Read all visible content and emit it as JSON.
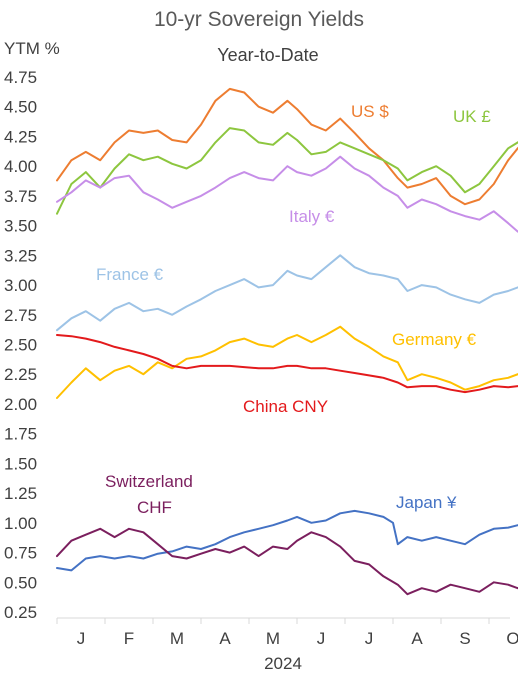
{
  "chart_data": {
    "type": "line",
    "title": "10-yr Sovereign Yields",
    "subtitle": "Year-to-Date",
    "ylabel": "YTM %",
    "xlabel": "2024",
    "ylim": [
      0.25,
      4.75
    ],
    "yticks": [
      "4.75",
      "4.50",
      "4.25",
      "4.00",
      "3.75",
      "3.50",
      "3.25",
      "3.00",
      "2.75",
      "2.50",
      "2.25",
      "2.00",
      "1.75",
      "1.50",
      "1.25",
      "1.00",
      "0.75",
      "0.50",
      "0.25"
    ],
    "months": [
      "J",
      "F",
      "M",
      "A",
      "M",
      "J",
      "J",
      "A",
      "S",
      "O"
    ],
    "grid": false,
    "series": [
      {
        "name": "US $",
        "color": "#ed7d31",
        "points": [
          [
            0.0,
            3.88
          ],
          [
            0.3,
            4.05
          ],
          [
            0.6,
            4.12
          ],
          [
            0.9,
            4.05
          ],
          [
            1.2,
            4.2
          ],
          [
            1.5,
            4.3
          ],
          [
            1.8,
            4.28
          ],
          [
            2.1,
            4.3
          ],
          [
            2.4,
            4.22
          ],
          [
            2.7,
            4.2
          ],
          [
            3.0,
            4.35
          ],
          [
            3.3,
            4.55
          ],
          [
            3.6,
            4.65
          ],
          [
            3.9,
            4.62
          ],
          [
            4.2,
            4.5
          ],
          [
            4.5,
            4.45
          ],
          [
            4.8,
            4.55
          ],
          [
            5.0,
            4.48
          ],
          [
            5.3,
            4.35
          ],
          [
            5.6,
            4.3
          ],
          [
            5.9,
            4.4
          ],
          [
            6.2,
            4.28
          ],
          [
            6.5,
            4.15
          ],
          [
            6.8,
            4.05
          ],
          [
            7.1,
            3.9
          ],
          [
            7.3,
            3.82
          ],
          [
            7.6,
            3.85
          ],
          [
            7.9,
            3.9
          ],
          [
            8.2,
            3.75
          ],
          [
            8.5,
            3.68
          ],
          [
            8.8,
            3.72
          ],
          [
            9.1,
            3.85
          ],
          [
            9.4,
            4.05
          ],
          [
            9.6,
            4.15
          ],
          [
            9.8,
            4.24
          ]
        ]
      },
      {
        "name": "UK £",
        "color": "#8dc63f",
        "points": [
          [
            0.0,
            3.6
          ],
          [
            0.3,
            3.85
          ],
          [
            0.6,
            3.95
          ],
          [
            0.9,
            3.82
          ],
          [
            1.2,
            3.98
          ],
          [
            1.5,
            4.1
          ],
          [
            1.8,
            4.05
          ],
          [
            2.1,
            4.08
          ],
          [
            2.4,
            4.02
          ],
          [
            2.7,
            3.98
          ],
          [
            3.0,
            4.05
          ],
          [
            3.3,
            4.2
          ],
          [
            3.6,
            4.32
          ],
          [
            3.9,
            4.3
          ],
          [
            4.2,
            4.2
          ],
          [
            4.5,
            4.18
          ],
          [
            4.8,
            4.28
          ],
          [
            5.0,
            4.22
          ],
          [
            5.3,
            4.1
          ],
          [
            5.6,
            4.12
          ],
          [
            5.9,
            4.2
          ],
          [
            6.2,
            4.15
          ],
          [
            6.5,
            4.1
          ],
          [
            6.8,
            4.05
          ],
          [
            7.1,
            3.98
          ],
          [
            7.3,
            3.88
          ],
          [
            7.6,
            3.95
          ],
          [
            7.9,
            4.0
          ],
          [
            8.2,
            3.92
          ],
          [
            8.5,
            3.78
          ],
          [
            8.8,
            3.85
          ],
          [
            9.1,
            4.0
          ],
          [
            9.4,
            4.15
          ],
          [
            9.6,
            4.2
          ],
          [
            9.8,
            4.25
          ]
        ]
      },
      {
        "name": "Italy €",
        "color": "#c68ee8",
        "points": [
          [
            0.0,
            3.7
          ],
          [
            0.3,
            3.78
          ],
          [
            0.6,
            3.88
          ],
          [
            0.9,
            3.82
          ],
          [
            1.2,
            3.9
          ],
          [
            1.5,
            3.92
          ],
          [
            1.8,
            3.78
          ],
          [
            2.1,
            3.72
          ],
          [
            2.4,
            3.65
          ],
          [
            2.7,
            3.7
          ],
          [
            3.0,
            3.75
          ],
          [
            3.3,
            3.82
          ],
          [
            3.6,
            3.9
          ],
          [
            3.9,
            3.95
          ],
          [
            4.2,
            3.9
          ],
          [
            4.5,
            3.88
          ],
          [
            4.8,
            4.0
          ],
          [
            5.0,
            3.95
          ],
          [
            5.3,
            3.92
          ],
          [
            5.6,
            3.98
          ],
          [
            5.9,
            4.08
          ],
          [
            6.2,
            3.98
          ],
          [
            6.5,
            3.92
          ],
          [
            6.8,
            3.82
          ],
          [
            7.1,
            3.75
          ],
          [
            7.3,
            3.65
          ],
          [
            7.6,
            3.72
          ],
          [
            7.9,
            3.68
          ],
          [
            8.2,
            3.62
          ],
          [
            8.5,
            3.58
          ],
          [
            8.8,
            3.55
          ],
          [
            9.1,
            3.62
          ],
          [
            9.4,
            3.52
          ],
          [
            9.6,
            3.45
          ],
          [
            9.8,
            3.5
          ]
        ]
      },
      {
        "name": "France €",
        "color": "#9dc3e6",
        "points": [
          [
            0.0,
            2.62
          ],
          [
            0.3,
            2.72
          ],
          [
            0.6,
            2.78
          ],
          [
            0.9,
            2.7
          ],
          [
            1.2,
            2.8
          ],
          [
            1.5,
            2.85
          ],
          [
            1.8,
            2.78
          ],
          [
            2.1,
            2.8
          ],
          [
            2.4,
            2.75
          ],
          [
            2.7,
            2.82
          ],
          [
            3.0,
            2.88
          ],
          [
            3.3,
            2.95
          ],
          [
            3.6,
            3.0
          ],
          [
            3.9,
            3.05
          ],
          [
            4.2,
            2.98
          ],
          [
            4.5,
            3.0
          ],
          [
            4.8,
            3.12
          ],
          [
            5.0,
            3.08
          ],
          [
            5.3,
            3.05
          ],
          [
            5.6,
            3.15
          ],
          [
            5.9,
            3.25
          ],
          [
            6.2,
            3.15
          ],
          [
            6.5,
            3.1
          ],
          [
            6.8,
            3.08
          ],
          [
            7.1,
            3.05
          ],
          [
            7.3,
            2.95
          ],
          [
            7.6,
            3.0
          ],
          [
            7.9,
            2.98
          ],
          [
            8.2,
            2.92
          ],
          [
            8.5,
            2.88
          ],
          [
            8.8,
            2.85
          ],
          [
            9.1,
            2.92
          ],
          [
            9.4,
            2.95
          ],
          [
            9.6,
            2.98
          ],
          [
            9.8,
            3.0
          ]
        ]
      },
      {
        "name": "Germany €",
        "color": "#ffc000",
        "points": [
          [
            0.0,
            2.05
          ],
          [
            0.3,
            2.18
          ],
          [
            0.6,
            2.3
          ],
          [
            0.9,
            2.2
          ],
          [
            1.2,
            2.28
          ],
          [
            1.5,
            2.32
          ],
          [
            1.8,
            2.25
          ],
          [
            2.1,
            2.35
          ],
          [
            2.4,
            2.3
          ],
          [
            2.7,
            2.38
          ],
          [
            3.0,
            2.4
          ],
          [
            3.3,
            2.45
          ],
          [
            3.6,
            2.52
          ],
          [
            3.9,
            2.55
          ],
          [
            4.2,
            2.5
          ],
          [
            4.5,
            2.48
          ],
          [
            4.8,
            2.55
          ],
          [
            5.0,
            2.58
          ],
          [
            5.3,
            2.52
          ],
          [
            5.6,
            2.58
          ],
          [
            5.9,
            2.65
          ],
          [
            6.2,
            2.55
          ],
          [
            6.5,
            2.48
          ],
          [
            6.8,
            2.4
          ],
          [
            7.1,
            2.35
          ],
          [
            7.3,
            2.2
          ],
          [
            7.6,
            2.25
          ],
          [
            7.9,
            2.22
          ],
          [
            8.2,
            2.18
          ],
          [
            8.5,
            2.12
          ],
          [
            8.8,
            2.15
          ],
          [
            9.1,
            2.2
          ],
          [
            9.4,
            2.22
          ],
          [
            9.6,
            2.25
          ],
          [
            9.8,
            2.28
          ]
        ]
      },
      {
        "name": "China CNY",
        "color": "#e31a1c",
        "points": [
          [
            0.0,
            2.58
          ],
          [
            0.3,
            2.57
          ],
          [
            0.6,
            2.55
          ],
          [
            0.9,
            2.52
          ],
          [
            1.2,
            2.48
          ],
          [
            1.5,
            2.45
          ],
          [
            1.8,
            2.42
          ],
          [
            2.1,
            2.38
          ],
          [
            2.4,
            2.32
          ],
          [
            2.7,
            2.3
          ],
          [
            3.0,
            2.32
          ],
          [
            3.3,
            2.32
          ],
          [
            3.6,
            2.32
          ],
          [
            3.9,
            2.31
          ],
          [
            4.2,
            2.3
          ],
          [
            4.5,
            2.3
          ],
          [
            4.8,
            2.32
          ],
          [
            5.0,
            2.32
          ],
          [
            5.3,
            2.3
          ],
          [
            5.6,
            2.3
          ],
          [
            5.9,
            2.28
          ],
          [
            6.2,
            2.26
          ],
          [
            6.5,
            2.24
          ],
          [
            6.8,
            2.22
          ],
          [
            7.1,
            2.18
          ],
          [
            7.3,
            2.14
          ],
          [
            7.6,
            2.15
          ],
          [
            7.9,
            2.15
          ],
          [
            8.2,
            2.12
          ],
          [
            8.5,
            2.1
          ],
          [
            8.8,
            2.12
          ],
          [
            9.1,
            2.15
          ],
          [
            9.4,
            2.14
          ],
          [
            9.6,
            2.15
          ],
          [
            9.8,
            2.16
          ]
        ]
      },
      {
        "name": "Japan ¥",
        "color": "#4472c4",
        "points": [
          [
            0.0,
            0.62
          ],
          [
            0.3,
            0.6
          ],
          [
            0.6,
            0.7
          ],
          [
            0.9,
            0.72
          ],
          [
            1.2,
            0.7
          ],
          [
            1.5,
            0.72
          ],
          [
            1.8,
            0.7
          ],
          [
            2.1,
            0.74
          ],
          [
            2.4,
            0.76
          ],
          [
            2.7,
            0.8
          ],
          [
            3.0,
            0.78
          ],
          [
            3.3,
            0.82
          ],
          [
            3.6,
            0.88
          ],
          [
            3.9,
            0.92
          ],
          [
            4.2,
            0.95
          ],
          [
            4.5,
            0.98
          ],
          [
            4.8,
            1.02
          ],
          [
            5.0,
            1.05
          ],
          [
            5.3,
            1.0
          ],
          [
            5.6,
            1.02
          ],
          [
            5.9,
            1.08
          ],
          [
            6.2,
            1.1
          ],
          [
            6.5,
            1.08
          ],
          [
            6.8,
            1.05
          ],
          [
            7.0,
            1.0
          ],
          [
            7.1,
            0.82
          ],
          [
            7.3,
            0.88
          ],
          [
            7.6,
            0.85
          ],
          [
            7.9,
            0.88
          ],
          [
            8.2,
            0.85
          ],
          [
            8.5,
            0.82
          ],
          [
            8.8,
            0.9
          ],
          [
            9.1,
            0.95
          ],
          [
            9.4,
            0.96
          ],
          [
            9.6,
            0.98
          ],
          [
            9.8,
            0.98
          ]
        ]
      },
      {
        "name": "Switzerland CHF",
        "color": "#7b1f5e",
        "points": [
          [
            0.0,
            0.72
          ],
          [
            0.3,
            0.85
          ],
          [
            0.6,
            0.9
          ],
          [
            0.9,
            0.95
          ],
          [
            1.2,
            0.88
          ],
          [
            1.5,
            0.95
          ],
          [
            1.8,
            0.92
          ],
          [
            2.1,
            0.82
          ],
          [
            2.4,
            0.72
          ],
          [
            2.7,
            0.7
          ],
          [
            3.0,
            0.74
          ],
          [
            3.3,
            0.78
          ],
          [
            3.6,
            0.75
          ],
          [
            3.9,
            0.8
          ],
          [
            4.2,
            0.72
          ],
          [
            4.5,
            0.8
          ],
          [
            4.8,
            0.78
          ],
          [
            5.0,
            0.85
          ],
          [
            5.3,
            0.92
          ],
          [
            5.6,
            0.88
          ],
          [
            5.9,
            0.8
          ],
          [
            6.2,
            0.68
          ],
          [
            6.5,
            0.65
          ],
          [
            6.8,
            0.55
          ],
          [
            7.1,
            0.48
          ],
          [
            7.3,
            0.4
          ],
          [
            7.6,
            0.45
          ],
          [
            7.9,
            0.42
          ],
          [
            8.2,
            0.48
          ],
          [
            8.5,
            0.45
          ],
          [
            8.8,
            0.42
          ],
          [
            9.1,
            0.5
          ],
          [
            9.4,
            0.48
          ],
          [
            9.6,
            0.45
          ],
          [
            9.8,
            0.5
          ]
        ]
      }
    ],
    "labels": [
      {
        "text": "US $"
      },
      {
        "text": "UK £"
      },
      {
        "text": "Italy €"
      },
      {
        "text": "France €"
      },
      {
        "text": "Germany €"
      },
      {
        "text": "China CNY"
      },
      {
        "text": "Japan ¥"
      },
      {
        "text": "Switzerland"
      },
      {
        "text": "CHF"
      }
    ]
  }
}
